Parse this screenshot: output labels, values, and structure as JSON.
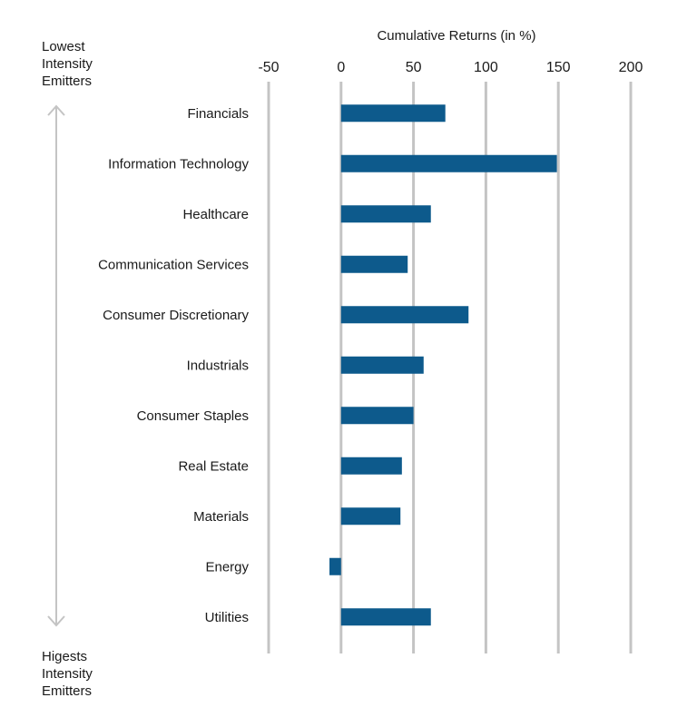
{
  "chart_data": {
    "type": "bar",
    "orientation": "horizontal",
    "title": "Cumulative Returns (in %)",
    "categories": [
      "Financials",
      "Information Technology",
      "Healthcare",
      "Communication Services",
      "Consumer Discretionary",
      "Industrials",
      "Consumer Staples",
      "Real Estate",
      "Materials",
      "Energy",
      "Utilities"
    ],
    "values": [
      72,
      149,
      62,
      46,
      88,
      57,
      50,
      42,
      41,
      -8,
      62
    ],
    "xlim": [
      -50,
      200
    ],
    "xticks": [
      "-50",
      "0",
      "50",
      "100",
      "150",
      "200"
    ],
    "grid": true,
    "bar_color": "#0d5a8c",
    "grid_color": "#c4c4c4",
    "arrow_color": "#c4c4c4",
    "top_label": [
      "Lowest",
      "Intensity",
      "Emitters"
    ],
    "bottom_label": [
      "Higests",
      "Intensity",
      "Emitters"
    ]
  }
}
